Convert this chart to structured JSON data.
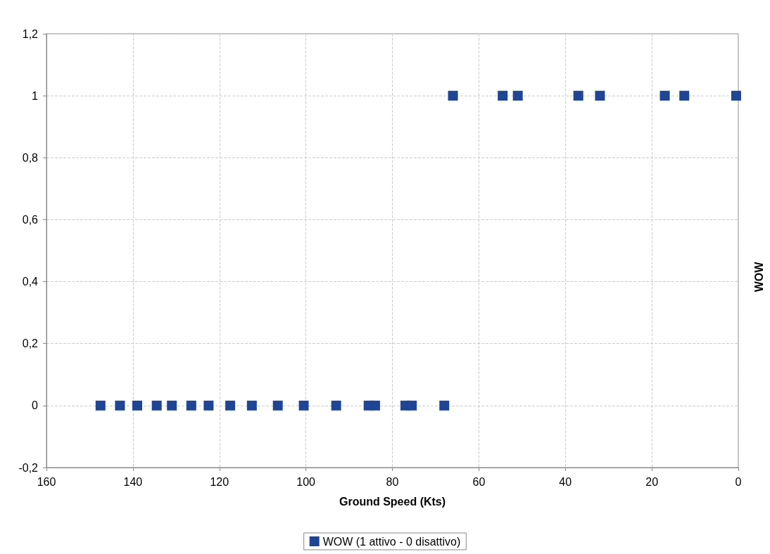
{
  "chart_data": {
    "type": "scatter",
    "xlabel": "Ground Speed (Kts)",
    "ylabel": "WOW",
    "series": [
      {
        "name": "WOW (1 attivo - 0 disattivo)",
        "color": "#1f4596",
        "x": [
          147.5,
          143,
          139,
          134.5,
          131,
          126.5,
          122.5,
          117.5,
          112.5,
          106.5,
          100.5,
          93,
          85.5,
          84,
          77,
          75.5,
          68,
          66,
          54.5,
          51,
          37,
          32,
          17,
          12.5,
          0.5
        ],
        "values": [
          0,
          0,
          0,
          0,
          0,
          0,
          0,
          0,
          0,
          0,
          0,
          0,
          0,
          0,
          0,
          0,
          0,
          1,
          1,
          1,
          1,
          1,
          1,
          1,
          1
        ]
      }
    ],
    "xlim": [
      160,
      0
    ],
    "xticks": [
      160,
      140,
      120,
      100,
      80,
      60,
      40,
      20,
      0
    ],
    "ylim": [
      -0.2,
      1.2
    ],
    "yticks": [
      {
        "value": -0.2,
        "label": "-0,2"
      },
      0,
      {
        "value": 0.2,
        "label": "0,2"
      },
      {
        "value": 0.4,
        "label": "0,4"
      },
      {
        "value": 0.6,
        "label": "0,6"
      },
      {
        "value": 0.8,
        "label": "0,8"
      },
      1,
      {
        "value": 1.2,
        "label": "1,2"
      }
    ],
    "grid": true,
    "legend": "bottom",
    "marker": "square"
  }
}
